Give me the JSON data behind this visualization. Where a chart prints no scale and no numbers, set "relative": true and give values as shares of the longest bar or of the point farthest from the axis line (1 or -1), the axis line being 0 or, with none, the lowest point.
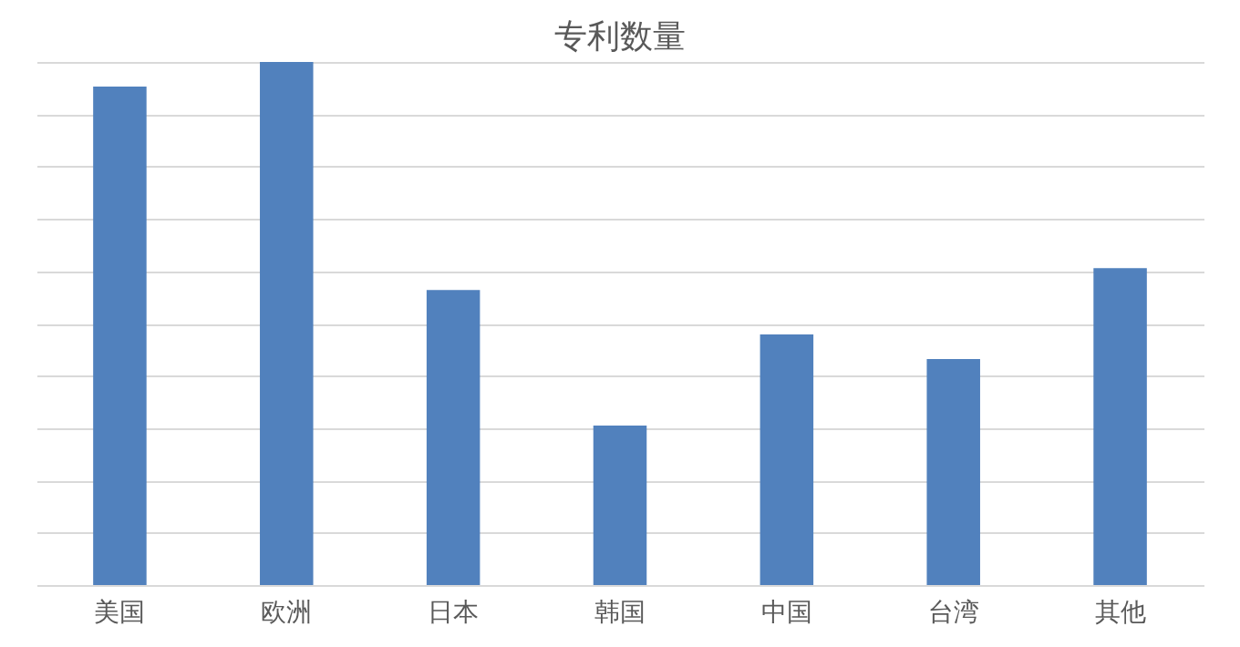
{
  "chart_data": {
    "type": "bar",
    "title": "专利数量",
    "relative": true,
    "categories": [
      "美国",
      "欧洲",
      "日本",
      "韩国",
      "中国",
      "台湾",
      "其他"
    ],
    "values": [
      0.953,
      1,
      0.564,
      0.305,
      0.479,
      0.432,
      0.606
    ],
    "color": "#5181bd",
    "grid": "y"
  }
}
